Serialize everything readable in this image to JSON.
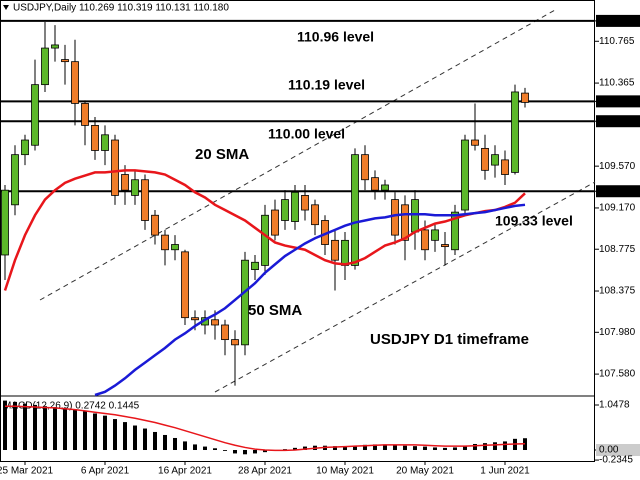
{
  "chart_data": [
    {
      "type": "candlestick",
      "title": "USDJPY,Daily  110.269 110.319 110.131 110.180",
      "categories": [
        null,
        null,
        "25 Mar 2021",
        null,
        null,
        null,
        null,
        null,
        null,
        null,
        "6 Apr 2021",
        null,
        null,
        null,
        null,
        null,
        null,
        null,
        "16 Apr 2021",
        null,
        null,
        null,
        null,
        null,
        null,
        null,
        "28 Apr 2021",
        null,
        null,
        null,
        null,
        null,
        null,
        null,
        "10 May 2021",
        null,
        null,
        null,
        null,
        null,
        null,
        null,
        "20 May 2021",
        null,
        null,
        null,
        null,
        null,
        null,
        null,
        "1 Jun 2021",
        null,
        null
      ],
      "open": [
        108.72,
        109.2,
        109.68,
        109.77,
        110.35,
        110.7,
        110.59,
        110.57,
        110.17,
        109.96,
        109.72,
        109.82,
        109.49,
        109.29,
        109.44,
        109.1,
        108.91,
        108.77,
        108.75,
        108.12,
        108.05,
        108.1,
        108.05,
        107.91,
        107.86,
        108.58,
        108.62,
        109.15,
        109.05,
        109.04,
        109.29,
        109.2,
        109.05,
        108.86,
        108.62,
        108.62,
        109.68,
        109.46,
        109.34,
        109.25,
        109.2,
        108.94,
        108.96,
        108.86,
        108.82,
        108.77,
        109.15,
        109.82,
        109.74,
        109.58,
        109.63,
        109.51,
        110.269
      ],
      "high": [
        109.39,
        109.77,
        109.87,
        110.59,
        110.95,
        110.92,
        110.73,
        110.78,
        110.2,
        110.04,
        109.96,
        109.87,
        109.58,
        109.53,
        109.49,
        109.15,
        108.96,
        108.91,
        108.77,
        108.19,
        108.19,
        108.19,
        108.1,
        108.0,
        108.75,
        108.72,
        109.2,
        109.25,
        109.34,
        109.39,
        109.39,
        109.25,
        109.1,
        108.96,
        108.94,
        109.74,
        109.77,
        109.53,
        109.44,
        109.32,
        109.29,
        109.34,
        109.05,
        109.01,
        108.94,
        109.2,
        109.87,
        110.17,
        109.87,
        109.77,
        109.72,
        110.35,
        110.319
      ],
      "low": [
        108.48,
        109.1,
        109.58,
        109.72,
        110.28,
        110.57,
        110.35,
        109.96,
        109.77,
        109.63,
        109.58,
        109.2,
        109.2,
        109.2,
        108.96,
        108.82,
        108.62,
        108.67,
        108.05,
        108.0,
        107.96,
        107.91,
        107.76,
        107.47,
        107.76,
        108.48,
        108.53,
        108.86,
        108.96,
        108.96,
        109.05,
        108.91,
        108.72,
        108.38,
        108.48,
        108.58,
        109.34,
        109.25,
        109.25,
        108.82,
        108.67,
        108.77,
        108.67,
        108.75,
        108.62,
        108.72,
        109.1,
        109.72,
        109.44,
        109.46,
        109.39,
        109.49,
        110.131
      ],
      "close": [
        109.34,
        109.68,
        109.82,
        110.35,
        110.7,
        110.73,
        110.57,
        110.17,
        109.96,
        109.72,
        109.87,
        109.29,
        109.34,
        109.44,
        109.05,
        108.91,
        108.77,
        108.82,
        108.12,
        108.1,
        108.12,
        108.05,
        107.91,
        107.86,
        108.67,
        108.65,
        109.1,
        108.91,
        109.25,
        109.32,
        109.15,
        109.01,
        108.82,
        108.67,
        108.86,
        109.68,
        109.44,
        109.34,
        109.39,
        108.91,
        108.86,
        109.25,
        108.77,
        108.96,
        108.8,
        109.13,
        109.82,
        109.77,
        109.53,
        109.68,
        109.49,
        110.28,
        110.18
      ],
      "up_color": "#5cb82a",
      "down_color": "#f07d2a",
      "series": [
        {
          "name": "20 SMA",
          "color": "#e8161b",
          "values": [
            108.38,
            108.67,
            108.91,
            109.1,
            109.25,
            109.34,
            109.41,
            109.45,
            109.48,
            109.51,
            109.51,
            109.52,
            109.53,
            109.53,
            109.52,
            109.51,
            109.49,
            109.44,
            109.39,
            109.32,
            109.27,
            109.2,
            109.15,
            109.1,
            109.05,
            108.98,
            108.91,
            108.84,
            108.81,
            108.79,
            108.77,
            108.72,
            108.67,
            108.64,
            108.63,
            108.65,
            108.69,
            108.75,
            108.81,
            108.84,
            108.88,
            108.94,
            108.98,
            109.02,
            109.04,
            109.07,
            109.1,
            109.12,
            109.14,
            109.15,
            109.18,
            109.22,
            109.31
          ]
        },
        {
          "name": "50 SMA",
          "color": "#1a1ad6",
          "values": [
            null,
            null,
            null,
            null,
            null,
            null,
            null,
            null,
            null,
            107.38,
            107.41,
            107.47,
            107.54,
            107.62,
            107.69,
            107.76,
            107.83,
            107.91,
            107.97,
            108.04,
            108.1,
            108.15,
            108.21,
            108.29,
            108.37,
            108.45,
            108.55,
            108.63,
            108.71,
            108.77,
            108.83,
            108.88,
            108.92,
            108.96,
            109.0,
            109.03,
            109.05,
            109.07,
            109.08,
            109.1,
            109.11,
            109.11,
            109.11,
            109.1,
            109.1,
            109.1,
            109.11,
            109.12,
            109.13,
            109.15,
            109.17,
            109.19,
            109.2
          ]
        }
      ],
      "levels": [
        {
          "value": 110.96,
          "label": "110.96 level"
        },
        {
          "value": 110.19,
          "label": "110.19 level"
        },
        {
          "value": 110.0,
          "label": "110.00 level"
        },
        {
          "value": 109.33,
          "label": "109.33 level"
        }
      ],
      "annotations": [
        "USDJPY D1 timeframe"
      ],
      "ylim": [
        107.38,
        111.16
      ],
      "yticks": [
        {
          "value": 110.96,
          "label": "110.960"
        },
        110.765,
        110.365,
        {
          "value": 110.19,
          "label": "110.190"
        },
        {
          "value": 110.0,
          "label": "110.000"
        },
        {
          "value": 109.57,
          "label": "109.570"
        },
        {
          "value": 109.33,
          "label": "109.330"
        },
        {
          "value": 109.17,
          "label": "109.170"
        },
        108.775,
        108.375,
        {
          "value": 107.98,
          "label": "107.980"
        },
        {
          "value": 107.58,
          "label": "107.580"
        }
      ]
    },
    {
      "type": "macd",
      "title": "MACD(12,26,9) 0.2742 0.1445",
      "values": [
        1.15,
        1.12,
        1.08,
        1.05,
        1.02,
        1.0,
        0.98,
        0.95,
        0.9,
        0.85,
        0.8,
        0.72,
        0.65,
        0.57,
        0.5,
        0.42,
        0.35,
        0.28,
        0.2,
        0.13,
        0.08,
        0.04,
        -0.02,
        -0.08,
        -0.1,
        -0.08,
        -0.05,
        -0.02,
        0.02,
        0.05,
        0.08,
        0.1,
        0.1,
        0.09,
        0.08,
        0.1,
        0.12,
        0.13,
        0.13,
        0.12,
        0.1,
        0.09,
        0.08,
        0.06,
        0.05,
        0.06,
        0.1,
        0.14,
        0.16,
        0.18,
        0.2,
        0.26,
        0.2742
      ],
      "color": "#000000",
      "signal": [
        1.02,
        1.02,
        1.01,
        1.0,
        0.99,
        0.98,
        0.96,
        0.94,
        0.91,
        0.88,
        0.85,
        0.82,
        0.78,
        0.74,
        0.69,
        0.64,
        0.58,
        0.52,
        0.45,
        0.38,
        0.31,
        0.24,
        0.17,
        0.11,
        0.06,
        0.02,
        0.0,
        -0.01,
        -0.01,
        0.0,
        0.02,
        0.04,
        0.06,
        0.07,
        0.08,
        0.09,
        0.1,
        0.11,
        0.12,
        0.12,
        0.12,
        0.12,
        0.11,
        0.1,
        0.09,
        0.09,
        0.09,
        0.1,
        0.11,
        0.12,
        0.13,
        0.14,
        0.1445
      ],
      "signal_color": "#e8161b",
      "ylim": [
        -0.256,
        1.234
      ],
      "yticks": [
        1.0478,
        {
          "value": 0,
          "label": "0.00"
        },
        -0.2345
      ]
    }
  ]
}
